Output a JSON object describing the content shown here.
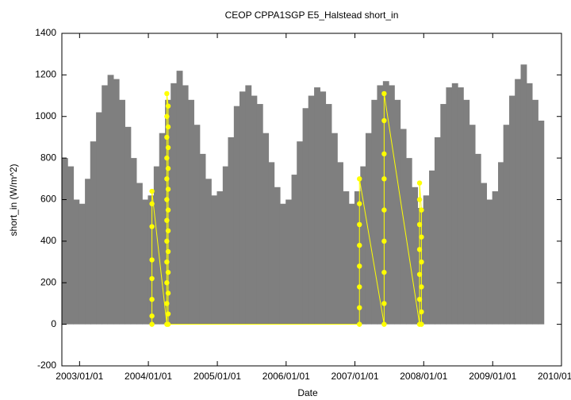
{
  "chart_data": {
    "type": "scatter",
    "title": "CEOP CPPA1SGP E5_Halstead  short_in",
    "x_label": "Date",
    "y_label": "short_in (W/m^2)",
    "xlim": [
      "2002/09/29",
      "2010/01/01"
    ],
    "xticks": [
      "2003/01/01",
      "2004/01/01",
      "2005/01/01",
      "2006/01/01",
      "2007/01/01",
      "2008/01/01",
      "2009/01/01",
      "2010/01/01"
    ],
    "ylim": [
      -200,
      1400
    ],
    "yticks": [
      -200,
      0,
      200,
      400,
      600,
      800,
      1000,
      1200,
      1400
    ],
    "grid": false,
    "series": [
      {
        "color": "#7f7f7f",
        "mark": "bar",
        "x": [
          "2002/10/15",
          "2002/11/15",
          "2002/12/15",
          "2003/01/15",
          "2003/02/15",
          "2003/03/15",
          "2003/04/15",
          "2003/05/15",
          "2003/06/15",
          "2003/07/15",
          "2003/08/15",
          "2003/09/15",
          "2003/10/15",
          "2003/11/15",
          "2003/12/15",
          "2004/01/15",
          "2004/02/15",
          "2004/03/15",
          "2004/04/15",
          "2004/05/15",
          "2004/06/15",
          "2004/07/15",
          "2004/08/15",
          "2004/09/15",
          "2004/10/15",
          "2004/11/15",
          "2004/12/15",
          "2005/01/15",
          "2005/02/15",
          "2005/03/15",
          "2005/04/15",
          "2005/05/15",
          "2005/06/15",
          "2005/07/15",
          "2005/08/15",
          "2005/09/15",
          "2005/10/15",
          "2005/11/15",
          "2005/12/15",
          "2006/01/15",
          "2006/02/15",
          "2006/03/15",
          "2006/04/15",
          "2006/05/15",
          "2006/06/15",
          "2006/07/15",
          "2006/08/15",
          "2006/09/15",
          "2006/10/15",
          "2006/11/15",
          "2006/12/15",
          "2007/01/15",
          "2007/02/15",
          "2007/03/15",
          "2007/04/15",
          "2007/05/15",
          "2007/06/15",
          "2007/07/15",
          "2007/08/15",
          "2007/09/15",
          "2007/10/15",
          "2007/11/15",
          "2007/12/15",
          "2008/01/15",
          "2008/02/15",
          "2008/03/15",
          "2008/04/15",
          "2008/05/15",
          "2008/06/15",
          "2008/07/15",
          "2008/08/15",
          "2008/09/15",
          "2008/10/15",
          "2008/11/15",
          "2008/12/15",
          "2009/01/15",
          "2009/02/15",
          "2009/03/15",
          "2009/04/15",
          "2009/05/15",
          "2009/06/15",
          "2009/07/15",
          "2009/08/15",
          "2009/09/15"
        ],
        "values": [
          800,
          760,
          600,
          580,
          700,
          880,
          1020,
          1150,
          1200,
          1180,
          1080,
          950,
          800,
          680,
          600,
          620,
          760,
          920,
          1080,
          1160,
          1220,
          1150,
          1080,
          960,
          820,
          700,
          620,
          640,
          760,
          900,
          1050,
          1120,
          1150,
          1100,
          1060,
          920,
          780,
          660,
          580,
          600,
          720,
          880,
          1040,
          1100,
          1140,
          1120,
          1060,
          920,
          780,
          640,
          580,
          640,
          760,
          920,
          1080,
          1150,
          1170,
          1150,
          1080,
          940,
          800,
          660,
          560,
          620,
          740,
          900,
          1060,
          1140,
          1160,
          1140,
          1080,
          960,
          820,
          680,
          600,
          640,
          780,
          960,
          1100,
          1180,
          1250,
          1160,
          1080,
          980
        ]
      },
      {
        "color": "#ffff00",
        "mark": "point",
        "x": [
          "2004/01/20",
          "2004/01/20",
          "2004/01/20",
          "2004/01/20",
          "2004/01/20",
          "2004/01/20",
          "2004/01/20",
          "2004/01/20",
          "2004/04/08",
          "2004/04/08",
          "2004/04/08",
          "2004/04/08",
          "2004/04/08",
          "2004/04/08",
          "2004/04/08",
          "2004/04/08",
          "2004/04/08",
          "2004/04/08",
          "2004/04/08",
          "2004/04/08",
          "2004/04/15",
          "2004/04/15",
          "2004/04/15",
          "2004/04/15",
          "2004/04/15",
          "2004/04/15",
          "2004/04/15",
          "2004/04/15",
          "2004/04/15",
          "2004/04/15",
          "2004/04/15",
          "2004/04/15",
          "2007/01/25",
          "2007/01/25",
          "2007/01/25",
          "2007/01/25",
          "2007/01/25",
          "2007/01/25",
          "2007/01/25",
          "2007/01/25",
          "2007/06/05",
          "2007/06/05",
          "2007/06/05",
          "2007/06/05",
          "2007/06/05",
          "2007/06/05",
          "2007/06/05",
          "2007/06/05",
          "2007/06/05",
          "2007/12/10",
          "2007/12/10",
          "2007/12/10",
          "2007/12/10",
          "2007/12/10",
          "2007/12/10",
          "2007/12/10",
          "2007/12/20",
          "2007/12/20",
          "2007/12/20",
          "2007/12/20",
          "2007/12/20",
          "2007/12/20"
        ],
        "values": [
          0,
          40,
          120,
          220,
          310,
          470,
          580,
          640,
          0,
          100,
          200,
          300,
          400,
          500,
          600,
          700,
          800,
          900,
          1000,
          1110,
          1050,
          950,
          850,
          750,
          650,
          550,
          450,
          350,
          250,
          150,
          50,
          0,
          0,
          80,
          180,
          280,
          380,
          480,
          580,
          700,
          0,
          100,
          250,
          400,
          550,
          700,
          820,
          980,
          1110,
          0,
          120,
          240,
          360,
          480,
          600,
          680,
          550,
          420,
          300,
          180,
          60,
          0
        ]
      }
    ]
  }
}
